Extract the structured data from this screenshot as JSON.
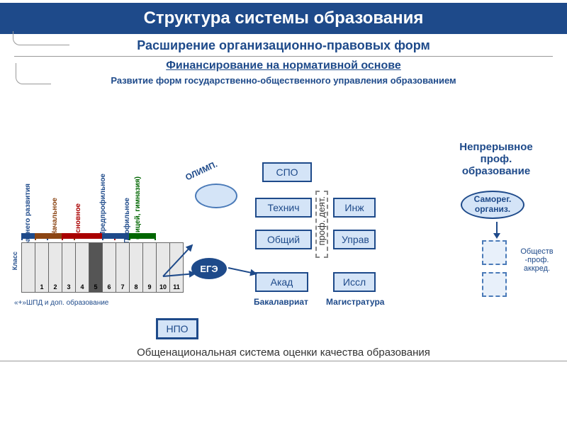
{
  "title": "Структура системы образования",
  "subtitle": "Расширение организационно-правовых форм",
  "section1": "Финансирование на нормативной основе",
  "section2": "Развитие форм государственно-общественного управления образованием",
  "verticalLabels": {
    "dev": "раннего развития",
    "nach": "Начальное",
    "osn": "Основное",
    "predprof": "Предпрофильное",
    "prof": "Профильное",
    "prof2": "(лицей, гимназия)",
    "class": "Класс"
  },
  "grades": [
    "",
    "1",
    "2",
    "3",
    "4",
    "5",
    "6",
    "7",
    "8",
    "9",
    "10",
    "11"
  ],
  "darkGradeIndex": 5,
  "legend": "«+»ШПД    и    доп.   образование",
  "boxes": {
    "spo": "СПО",
    "tech": "Технич",
    "gen": "Общий",
    "akad": "Акад",
    "ing": "Инж",
    "upr": "Управ",
    "issl": "Иссл",
    "npo": "НПО"
  },
  "profDeyat": "проф. деят.",
  "olimp": "ОЛИМП.",
  "ege": "ЕГЭ",
  "bottomLabels": {
    "bak": "Бакалавриат",
    "mag": "Магистратура"
  },
  "sideText": "Непрерывное проф. образование",
  "samoreg": "Саморег. организ.",
  "sideNote": "Обществ -проф. аккред.",
  "bottomLine": "Общенациональная система оценки качества образования",
  "colors": {
    "primary": "#1e4a8a",
    "boxBg": "#d4e4f7",
    "brown": "#8b4513",
    "red": "#a00000",
    "green": "#006600"
  }
}
